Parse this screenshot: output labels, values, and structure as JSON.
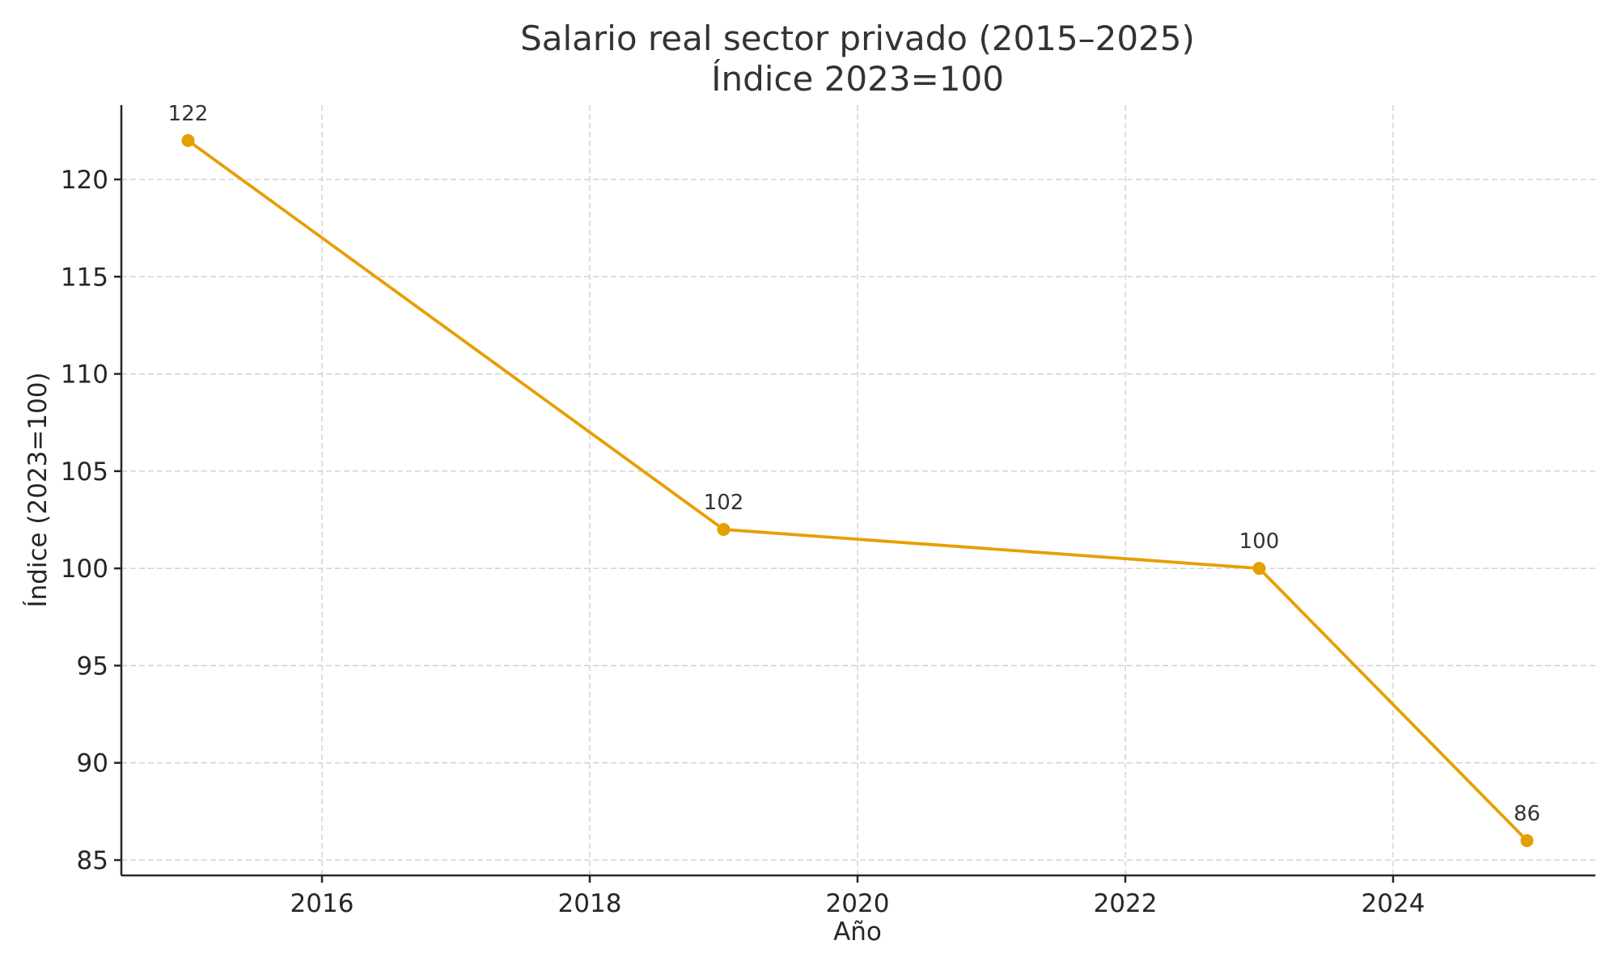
{
  "chart_data": {
    "type": "line",
    "title": "Salario real sector privado (2015–2025)",
    "subtitle": "Índice 2023=100",
    "xlabel": "Año",
    "ylabel": "Índice (2023=100)",
    "x": [
      2015,
      2019,
      2023,
      2025
    ],
    "series": [
      {
        "name": "Salario real sector privado",
        "values": [
          122,
          102,
          100,
          86
        ],
        "color": "#E69F00"
      }
    ],
    "data_labels": [
      "122",
      "102",
      "100",
      "86"
    ],
    "xticks": [
      "2016",
      "2018",
      "2020",
      "2022",
      "2024"
    ],
    "yticks": [
      "85",
      "90",
      "95",
      "100",
      "105",
      "110",
      "115",
      "120"
    ],
    "xlim": [
      2014.5,
      2025.5
    ],
    "ylim": [
      84.2,
      123.9
    ],
    "grid": true,
    "legend": null
  }
}
